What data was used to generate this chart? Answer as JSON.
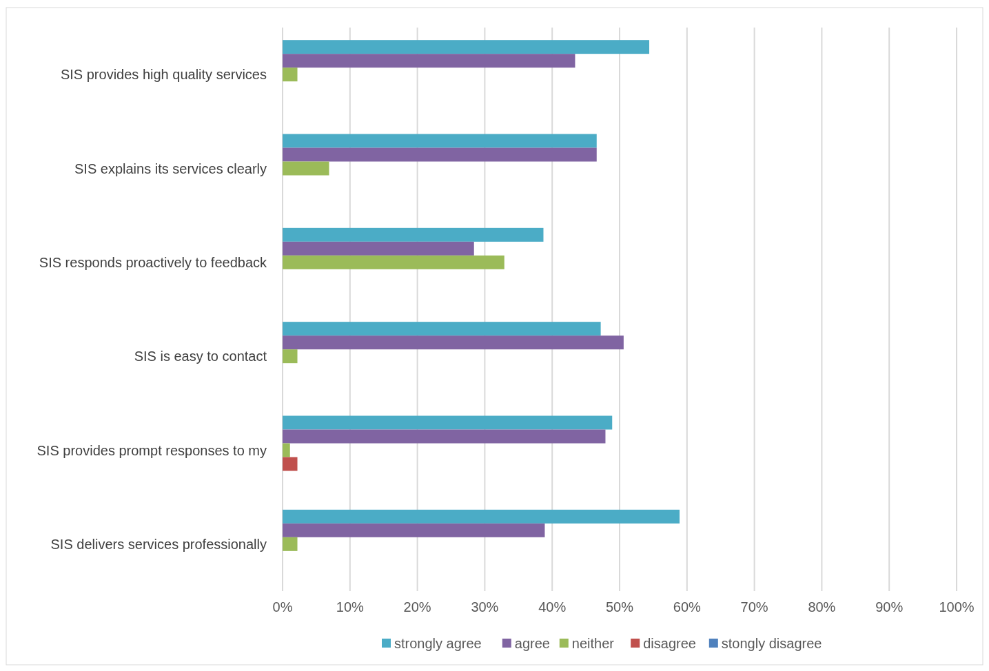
{
  "chart_data": {
    "type": "bar",
    "orientation": "horizontal",
    "categories": [
      "SIS provides high quality services",
      "SIS explains its services clearly",
      "SIS responds proactively to feedback",
      "SIS is easy to contact",
      "SIS provides prompt responses to my",
      "SIS delivers services professionally"
    ],
    "series": [
      {
        "name": "strongly agree",
        "color": "#4bacc6",
        "values": [
          54.4,
          46.6,
          38.7,
          47.2,
          48.9,
          58.9
        ]
      },
      {
        "name": "agree",
        "color": "#8064a2",
        "values": [
          43.4,
          46.6,
          28.4,
          50.6,
          47.9,
          38.9
        ]
      },
      {
        "name": "neither",
        "color": "#9bbb59",
        "values": [
          2.2,
          6.9,
          32.9,
          2.2,
          1.1,
          2.2
        ]
      },
      {
        "name": "disagree",
        "color": "#c0504d",
        "values": [
          null,
          null,
          null,
          null,
          2.2,
          null
        ]
      },
      {
        "name": "stongly disagree",
        "color": "#4f81bd",
        "values": [
          null,
          null,
          null,
          null,
          null,
          null
        ]
      }
    ],
    "xlim": [
      0,
      100
    ],
    "xticks": [
      {
        "value": 0,
        "label": "0%"
      },
      {
        "value": 10,
        "label": "10%"
      },
      {
        "value": 20,
        "label": "20%"
      },
      {
        "value": 30,
        "label": "30%"
      },
      {
        "value": 40,
        "label": "40%"
      },
      {
        "value": 50,
        "label": "50%"
      },
      {
        "value": 60,
        "label": "60%"
      },
      {
        "value": 70,
        "label": "70%"
      },
      {
        "value": 80,
        "label": "80%"
      },
      {
        "value": 90,
        "label": "90%"
      },
      {
        "value": 100,
        "label": "100%"
      }
    ],
    "grid": "x",
    "legend": "bottom"
  }
}
